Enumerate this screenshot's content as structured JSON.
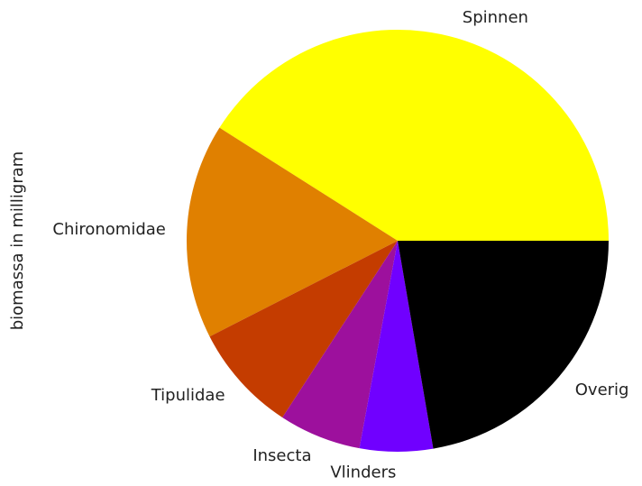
{
  "chart_data": {
    "type": "pie",
    "ylabel": "biomassa in milligram",
    "categories": [
      "Spinnen",
      "Chironomidae",
      "Tipulidae",
      "Insecta",
      "Vlinders",
      "Overig"
    ],
    "values": [
      41,
      16.5,
      8.3,
      6.3,
      5.6,
      22.3
    ],
    "colors": [
      "#ffff00",
      "#e08000",
      "#c43c00",
      "#9d109d",
      "#7000ff",
      "#000000"
    ]
  }
}
